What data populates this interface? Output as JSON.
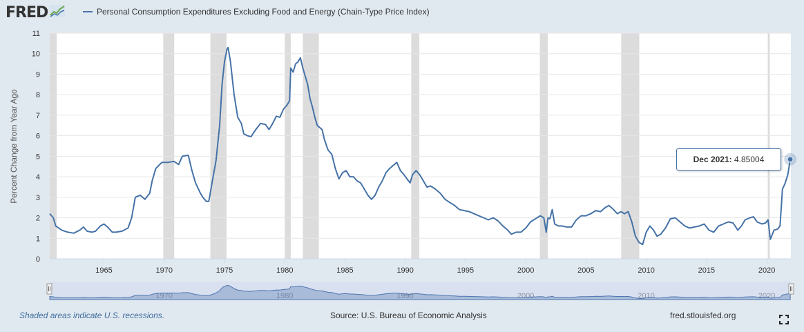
{
  "header": {
    "logo_text": "FRED",
    "logo_icon": "trend-line-icon",
    "series_title": "Personal Consumption Expenditures Excluding Food and Energy (Chain-Type Price Index)",
    "series_color": "#4572a7"
  },
  "footer": {
    "recession_note": "Shaded areas indicate U.S. recessions.",
    "source": "Source: U.S. Bureau of Economic Analysis",
    "site": "fred.stlouisfed.org",
    "fullscreen_icon": "fullscreen-icon"
  },
  "tooltip": {
    "date": "Dec 2021:",
    "value": "4.85004"
  },
  "chart_data": {
    "type": "line",
    "ylabel": "Percent Change from Year Ago",
    "xlabel": "",
    "ylim": [
      0,
      11
    ],
    "xlim": [
      1960.5,
      2022.0
    ],
    "yticks": [
      0,
      1,
      2,
      3,
      4,
      5,
      6,
      7,
      8,
      9,
      10,
      11
    ],
    "xticks": [
      1965,
      1970,
      1975,
      1980,
      1985,
      1990,
      1995,
      2000,
      2005,
      2010,
      2015,
      2020
    ],
    "navigator_labels": [
      "1970",
      "1980",
      "1990",
      "2000",
      "2010",
      "2020"
    ],
    "grid": true,
    "line_color": "#4572a7",
    "recession_color": "#dcdcdc",
    "recessions": [
      [
        1960.33,
        1961.08
      ],
      [
        1969.92,
        1970.83
      ],
      [
        1973.83,
        1975.17
      ],
      [
        1980.0,
        1980.5
      ],
      [
        1981.5,
        1982.83
      ],
      [
        1990.5,
        1991.17
      ],
      [
        2001.17,
        2001.83
      ],
      [
        2007.92,
        2009.42
      ],
      [
        2020.08,
        2020.25
      ]
    ],
    "series": [
      {
        "name": "Personal Consumption Expenditures Excluding Food and Energy (Chain-Type Price Index)",
        "points": [
          [
            1960.5,
            2.2
          ],
          [
            1960.8,
            2.0
          ],
          [
            1961.0,
            1.6
          ],
          [
            1961.5,
            1.4
          ],
          [
            1962.0,
            1.3
          ],
          [
            1962.5,
            1.25
          ],
          [
            1963.0,
            1.4
          ],
          [
            1963.3,
            1.55
          ],
          [
            1963.6,
            1.35
          ],
          [
            1964.0,
            1.3
          ],
          [
            1964.3,
            1.35
          ],
          [
            1964.7,
            1.6
          ],
          [
            1965.0,
            1.7
          ],
          [
            1965.3,
            1.55
          ],
          [
            1965.7,
            1.3
          ],
          [
            1966.0,
            1.3
          ],
          [
            1966.5,
            1.35
          ],
          [
            1967.0,
            1.5
          ],
          [
            1967.3,
            2.0
          ],
          [
            1967.6,
            3.0
          ],
          [
            1968.0,
            3.1
          ],
          [
            1968.4,
            2.9
          ],
          [
            1968.8,
            3.2
          ],
          [
            1969.0,
            3.8
          ],
          [
            1969.3,
            4.4
          ],
          [
            1969.8,
            4.7
          ],
          [
            1970.3,
            4.7
          ],
          [
            1970.8,
            4.75
          ],
          [
            1971.2,
            4.6
          ],
          [
            1971.5,
            5.0
          ],
          [
            1972.0,
            5.05
          ],
          [
            1972.3,
            4.3
          ],
          [
            1972.6,
            3.7
          ],
          [
            1973.0,
            3.2
          ],
          [
            1973.2,
            3.0
          ],
          [
            1973.5,
            2.8
          ],
          [
            1973.7,
            2.8
          ],
          [
            1974.0,
            3.8
          ],
          [
            1974.3,
            4.8
          ],
          [
            1974.6,
            6.5
          ],
          [
            1974.8,
            8.5
          ],
          [
            1975.0,
            9.6
          ],
          [
            1975.2,
            10.2
          ],
          [
            1975.3,
            10.3
          ],
          [
            1975.5,
            9.6
          ],
          [
            1975.8,
            8.0
          ],
          [
            1976.1,
            6.9
          ],
          [
            1976.4,
            6.6
          ],
          [
            1976.6,
            6.1
          ],
          [
            1976.9,
            6.0
          ],
          [
            1977.2,
            5.95
          ],
          [
            1977.6,
            6.3
          ],
          [
            1978.0,
            6.6
          ],
          [
            1978.4,
            6.55
          ],
          [
            1978.7,
            6.3
          ],
          [
            1979.0,
            6.6
          ],
          [
            1979.3,
            6.95
          ],
          [
            1979.6,
            6.9
          ],
          [
            1979.9,
            7.3
          ],
          [
            1980.2,
            7.5
          ],
          [
            1980.4,
            7.7
          ],
          [
            1980.5,
            9.3
          ],
          [
            1980.7,
            9.1
          ],
          [
            1980.9,
            9.5
          ],
          [
            1981.1,
            9.6
          ],
          [
            1981.3,
            9.8
          ],
          [
            1981.5,
            9.3
          ],
          [
            1981.7,
            8.9
          ],
          [
            1981.9,
            8.5
          ],
          [
            1982.1,
            7.8
          ],
          [
            1982.3,
            7.4
          ],
          [
            1982.5,
            6.9
          ],
          [
            1982.7,
            6.5
          ],
          [
            1982.9,
            6.4
          ],
          [
            1983.1,
            6.3
          ],
          [
            1983.3,
            5.8
          ],
          [
            1983.6,
            5.3
          ],
          [
            1983.9,
            5.1
          ],
          [
            1984.2,
            4.4
          ],
          [
            1984.5,
            3.9
          ],
          [
            1984.8,
            4.2
          ],
          [
            1985.1,
            4.3
          ],
          [
            1985.4,
            4.0
          ],
          [
            1985.7,
            4.0
          ],
          [
            1986.0,
            3.8
          ],
          [
            1986.3,
            3.7
          ],
          [
            1986.6,
            3.4
          ],
          [
            1986.9,
            3.1
          ],
          [
            1987.2,
            2.9
          ],
          [
            1987.5,
            3.1
          ],
          [
            1987.8,
            3.5
          ],
          [
            1988.1,
            3.8
          ],
          [
            1988.4,
            4.2
          ],
          [
            1988.7,
            4.4
          ],
          [
            1989.0,
            4.55
          ],
          [
            1989.3,
            4.7
          ],
          [
            1989.6,
            4.3
          ],
          [
            1989.9,
            4.1
          ],
          [
            1990.2,
            3.85
          ],
          [
            1990.4,
            3.7
          ],
          [
            1990.6,
            4.1
          ],
          [
            1990.9,
            4.3
          ],
          [
            1991.2,
            4.1
          ],
          [
            1991.5,
            3.8
          ],
          [
            1991.8,
            3.5
          ],
          [
            1992.1,
            3.55
          ],
          [
            1992.5,
            3.4
          ],
          [
            1992.9,
            3.2
          ],
          [
            1993.3,
            2.9
          ],
          [
            1993.7,
            2.75
          ],
          [
            1994.1,
            2.6
          ],
          [
            1994.5,
            2.4
          ],
          [
            1994.9,
            2.35
          ],
          [
            1995.3,
            2.3
          ],
          [
            1995.7,
            2.2
          ],
          [
            1996.1,
            2.1
          ],
          [
            1996.5,
            2.0
          ],
          [
            1996.9,
            1.9
          ],
          [
            1997.3,
            2.0
          ],
          [
            1997.7,
            1.85
          ],
          [
            1998.1,
            1.6
          ],
          [
            1998.5,
            1.4
          ],
          [
            1998.8,
            1.2
          ],
          [
            1999.2,
            1.3
          ],
          [
            1999.6,
            1.3
          ],
          [
            2000.0,
            1.5
          ],
          [
            2000.4,
            1.8
          ],
          [
            2000.8,
            1.95
          ],
          [
            2001.2,
            2.1
          ],
          [
            2001.5,
            2.0
          ],
          [
            2001.7,
            1.3
          ],
          [
            2001.85,
            2.0
          ],
          [
            2002.0,
            1.95
          ],
          [
            2002.2,
            2.4
          ],
          [
            2002.4,
            1.7
          ],
          [
            2002.7,
            1.6
          ],
          [
            2003.0,
            1.6
          ],
          [
            2003.4,
            1.55
          ],
          [
            2003.8,
            1.55
          ],
          [
            2004.2,
            1.9
          ],
          [
            2004.6,
            2.1
          ],
          [
            2005.0,
            2.1
          ],
          [
            2005.4,
            2.2
          ],
          [
            2005.8,
            2.35
          ],
          [
            2006.2,
            2.3
          ],
          [
            2006.6,
            2.5
          ],
          [
            2006.9,
            2.6
          ],
          [
            2007.2,
            2.45
          ],
          [
            2007.6,
            2.2
          ],
          [
            2007.9,
            2.3
          ],
          [
            2008.2,
            2.2
          ],
          [
            2008.5,
            2.3
          ],
          [
            2008.8,
            1.8
          ],
          [
            2009.1,
            1.1
          ],
          [
            2009.4,
            0.8
          ],
          [
            2009.7,
            0.7
          ],
          [
            2010.0,
            1.3
          ],
          [
            2010.3,
            1.6
          ],
          [
            2010.6,
            1.4
          ],
          [
            2010.9,
            1.1
          ],
          [
            2011.2,
            1.2
          ],
          [
            2011.6,
            1.5
          ],
          [
            2012.0,
            1.95
          ],
          [
            2012.4,
            2.0
          ],
          [
            2012.8,
            1.8
          ],
          [
            2013.2,
            1.6
          ],
          [
            2013.6,
            1.5
          ],
          [
            2014.0,
            1.55
          ],
          [
            2014.4,
            1.6
          ],
          [
            2014.8,
            1.7
          ],
          [
            2015.2,
            1.4
          ],
          [
            2015.6,
            1.3
          ],
          [
            2016.0,
            1.6
          ],
          [
            2016.4,
            1.7
          ],
          [
            2016.8,
            1.8
          ],
          [
            2017.2,
            1.75
          ],
          [
            2017.6,
            1.4
          ],
          [
            2017.9,
            1.6
          ],
          [
            2018.2,
            1.9
          ],
          [
            2018.6,
            2.0
          ],
          [
            2018.9,
            2.05
          ],
          [
            2019.2,
            1.8
          ],
          [
            2019.6,
            1.7
          ],
          [
            2019.9,
            1.75
          ],
          [
            2020.1,
            1.9
          ],
          [
            2020.3,
            0.95
          ],
          [
            2020.6,
            1.4
          ],
          [
            2020.9,
            1.45
          ],
          [
            2021.1,
            1.6
          ],
          [
            2021.3,
            3.4
          ],
          [
            2021.5,
            3.65
          ],
          [
            2021.75,
            4.1
          ],
          [
            2021.95,
            4.85
          ]
        ]
      }
    ],
    "last_point": {
      "label": "Dec 2021",
      "x": 2021.95,
      "y": 4.85004
    },
    "navigator_range": [
      1960.5,
      2022.0
    ]
  }
}
